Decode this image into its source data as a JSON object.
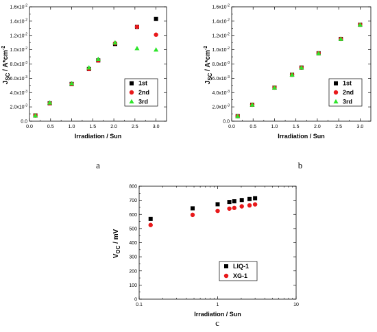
{
  "chart_data": [
    {
      "type": "scatter",
      "panel_label": "a",
      "xlabel": "Irradiation / Sun",
      "ylabel_main": "J",
      "ylabel_sub": "SC",
      "ylabel_rest": " / A*cm",
      "ylabel_sup": "-2",
      "xlim": [
        0.0,
        3.25
      ],
      "ylim": [
        0.0,
        0.016
      ],
      "x_ticks": [
        "0.0",
        "0.5",
        "1.0",
        "1.5",
        "2.0",
        "2.5",
        "3.0"
      ],
      "y_ticks": [
        {
          "mant": "0.0",
          "exp": ""
        },
        {
          "mant": "2.0x10",
          "exp": "-3"
        },
        {
          "mant": "4.0x10",
          "exp": "-3"
        },
        {
          "mant": "6.0x10",
          "exp": "-3"
        },
        {
          "mant": "8.0x10",
          "exp": "-3"
        },
        {
          "mant": "1.0x10",
          "exp": "-2"
        },
        {
          "mant": "1.2x10",
          "exp": "-2"
        },
        {
          "mant": "1.4x10",
          "exp": "-2"
        },
        {
          "mant": "1.6x10",
          "exp": "-2"
        }
      ],
      "legend_position": "center-right",
      "series": [
        {
          "name": "1st",
          "marker": "square",
          "color": "#000000",
          "x": [
            0.14,
            0.48,
            1.0,
            1.41,
            1.63,
            2.03,
            2.55,
            3.0
          ],
          "y": [
            0.0008,
            0.0025,
            0.0052,
            0.0073,
            0.0085,
            0.0108,
            0.0132,
            0.0143
          ]
        },
        {
          "name": "2nd",
          "marker": "circle",
          "color": "#e8191b",
          "x": [
            0.14,
            0.48,
            1.0,
            1.41,
            1.63,
            2.03,
            2.55,
            3.0
          ],
          "y": [
            0.0008,
            0.0025,
            0.0052,
            0.0073,
            0.0085,
            0.0109,
            0.0132,
            0.0121
          ]
        },
        {
          "name": "3rd",
          "marker": "triangle",
          "color": "#2ee52b",
          "x": [
            0.14,
            0.48,
            1.0,
            1.41,
            1.63,
            2.03,
            2.55,
            3.0
          ],
          "y": [
            0.0008,
            0.0026,
            0.0053,
            0.0075,
            0.0087,
            0.011,
            0.0102,
            0.01
          ]
        }
      ]
    },
    {
      "type": "scatter",
      "panel_label": "b",
      "xlabel": "Irradiation / Sun",
      "ylabel_main": "J",
      "ylabel_sub": "SC",
      "ylabel_rest": " / A*cm",
      "ylabel_sup": "-2",
      "xlim": [
        0.0,
        3.25
      ],
      "ylim": [
        0.0,
        0.016
      ],
      "x_ticks": [
        "0.0",
        "0.5",
        "1.0",
        "1.5",
        "2.0",
        "2.5",
        "3.0"
      ],
      "y_ticks": [
        {
          "mant": "0.0",
          "exp": ""
        },
        {
          "mant": "2.0x10",
          "exp": "-3"
        },
        {
          "mant": "4.0x10",
          "exp": "-3"
        },
        {
          "mant": "6.0x10",
          "exp": "-3"
        },
        {
          "mant": "8.0x10",
          "exp": "-3"
        },
        {
          "mant": "1.0x10",
          "exp": "-2"
        },
        {
          "mant": "1.2x10",
          "exp": "-2"
        },
        {
          "mant": "1.4x10",
          "exp": "-2"
        },
        {
          "mant": "1.6x10",
          "exp": "-2"
        }
      ],
      "legend_position": "bottom-right",
      "series": [
        {
          "name": "1st",
          "marker": "square",
          "color": "#000000",
          "x": [
            0.14,
            0.48,
            1.0,
            1.41,
            1.63,
            2.03,
            2.55,
            3.0
          ],
          "y": [
            0.0007,
            0.0023,
            0.0047,
            0.0065,
            0.0075,
            0.0095,
            0.0115,
            0.0135
          ]
        },
        {
          "name": "2nd",
          "marker": "circle",
          "color": "#e8191b",
          "x": [
            0.14,
            0.48,
            1.0,
            1.41,
            1.63,
            2.03,
            2.55,
            3.0
          ],
          "y": [
            0.0007,
            0.0023,
            0.0047,
            0.0065,
            0.0075,
            0.0095,
            0.0115,
            0.0135
          ]
        },
        {
          "name": "3rd",
          "marker": "triangle",
          "color": "#2ee52b",
          "x": [
            0.14,
            0.48,
            1.0,
            1.41,
            1.63,
            2.03,
            2.55,
            3.0
          ],
          "y": [
            0.0007,
            0.0023,
            0.0047,
            0.0065,
            0.0075,
            0.0095,
            0.0115,
            0.0135
          ]
        }
      ]
    },
    {
      "type": "scatter",
      "panel_label": "c",
      "xlabel": "Irradiation / Sun",
      "ylabel_main": "V",
      "ylabel_sub": "OC",
      "ylabel_rest": " / mV",
      "ylabel_sup": "",
      "x_scale": "log",
      "xlim": [
        0.1,
        10
      ],
      "ylim": [
        0,
        800
      ],
      "x_ticks": [
        "0.1",
        "1",
        "10"
      ],
      "y_ticks": [
        {
          "mant": "0",
          "exp": ""
        },
        {
          "mant": "100",
          "exp": ""
        },
        {
          "mant": "200",
          "exp": ""
        },
        {
          "mant": "300",
          "exp": ""
        },
        {
          "mant": "400",
          "exp": ""
        },
        {
          "mant": "500",
          "exp": ""
        },
        {
          "mant": "600",
          "exp": ""
        },
        {
          "mant": "700",
          "exp": ""
        },
        {
          "mant": "800",
          "exp": ""
        }
      ],
      "legend_position": "bottom-right",
      "series": [
        {
          "name": "LIQ-1",
          "marker": "square",
          "color": "#000000",
          "x": [
            0.14,
            0.48,
            1.0,
            1.41,
            1.63,
            2.03,
            2.55,
            3.0
          ],
          "y": [
            568,
            643,
            672,
            688,
            693,
            702,
            709,
            715
          ]
        },
        {
          "name": "XG-1",
          "marker": "circle",
          "color": "#e8191b",
          "x": [
            0.14,
            0.48,
            1.0,
            1.41,
            1.63,
            2.03,
            2.55,
            3.0
          ],
          "y": [
            525,
            597,
            625,
            641,
            646,
            657,
            664,
            671
          ]
        }
      ]
    }
  ]
}
